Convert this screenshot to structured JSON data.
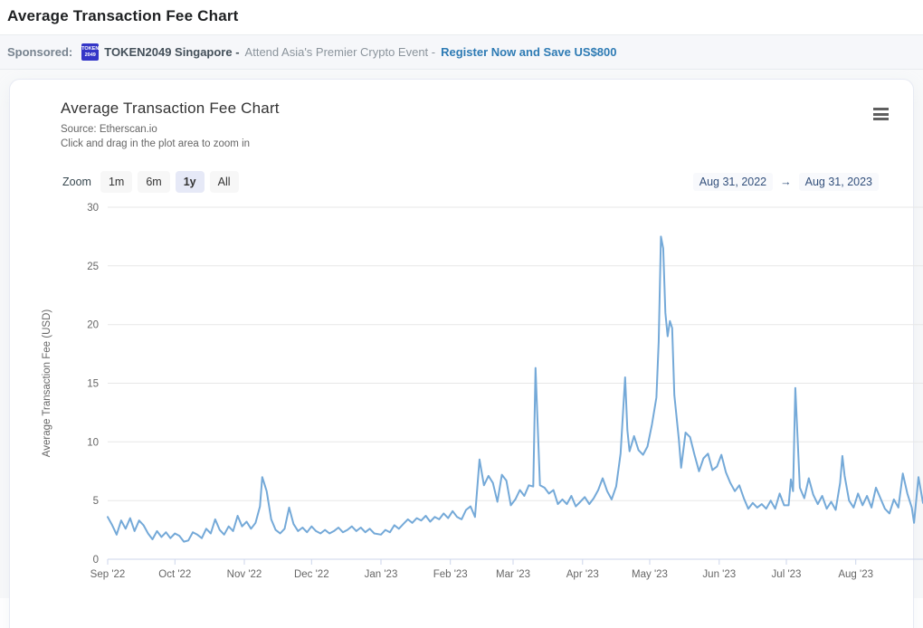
{
  "page": {
    "title": "Average Transaction Fee Chart"
  },
  "sponsor": {
    "label": "Sponsored:",
    "badge_line1": "TOKEN",
    "badge_line2": "2049",
    "name": "TOKEN2049 Singapore -",
    "text": "Attend Asia's Premier Crypto Event -",
    "link": "Register Now and Save US$800"
  },
  "card": {
    "title": "Average Transaction Fee Chart",
    "source": "Source: Etherscan.io",
    "hint": "Click and drag in the plot area to zoom in"
  },
  "range_selector": {
    "zoom_label": "Zoom",
    "buttons": [
      {
        "label": "1m",
        "selected": false
      },
      {
        "label": "6m",
        "selected": false
      },
      {
        "label": "1y",
        "selected": true
      },
      {
        "label": "All",
        "selected": false
      }
    ],
    "from": "Aug 31, 2022",
    "arrow": "→",
    "to": "Aug 31, 2023"
  },
  "chart_data": {
    "type": "line",
    "title": "Average Transaction Fee Chart",
    "ylabel": "Average Transaction Fee (USD)",
    "ylim": [
      0,
      30
    ],
    "yticks": [
      0,
      5,
      10,
      15,
      20,
      25,
      30
    ],
    "grid": "horizontal only",
    "legend": "none",
    "line_color": "#74a9d8",
    "grid_color": "#e7e7e7",
    "axis_line_color": "#ccd6eb",
    "x_unit": "days since Sep 1, 2022",
    "x_range_days": [
      0,
      364
    ],
    "xtick_labels": [
      "Sep '22",
      "Oct '22",
      "Nov '22",
      "Dec '22",
      "Jan '23",
      "Feb '23",
      "Mar '23",
      "Apr '23",
      "May '23",
      "Jun '23",
      "Jul '23",
      "Aug '23"
    ],
    "xtick_days": [
      0,
      30,
      61,
      91,
      122,
      153,
      181,
      212,
      242,
      273,
      303,
      334
    ],
    "series": [
      {
        "name": "Average Transaction Fee (USD)",
        "points": [
          [
            0,
            3.6
          ],
          [
            2,
            2.9
          ],
          [
            4,
            2.1
          ],
          [
            6,
            3.3
          ],
          [
            8,
            2.6
          ],
          [
            10,
            3.5
          ],
          [
            12,
            2.4
          ],
          [
            14,
            3.3
          ],
          [
            16,
            2.9
          ],
          [
            18,
            2.2
          ],
          [
            20,
            1.7
          ],
          [
            22,
            2.4
          ],
          [
            24,
            1.9
          ],
          [
            26,
            2.3
          ],
          [
            28,
            1.8
          ],
          [
            30,
            2.2
          ],
          [
            32,
            2.0
          ],
          [
            34,
            1.5
          ],
          [
            36,
            1.6
          ],
          [
            38,
            2.3
          ],
          [
            40,
            2.1
          ],
          [
            42,
            1.8
          ],
          [
            44,
            2.6
          ],
          [
            46,
            2.2
          ],
          [
            48,
            3.4
          ],
          [
            50,
            2.5
          ],
          [
            52,
            2.1
          ],
          [
            54,
            2.8
          ],
          [
            56,
            2.4
          ],
          [
            58,
            3.7
          ],
          [
            60,
            2.8
          ],
          [
            62,
            3.2
          ],
          [
            64,
            2.6
          ],
          [
            66,
            3.1
          ],
          [
            68,
            4.5
          ],
          [
            69,
            7.0
          ],
          [
            71,
            5.8
          ],
          [
            73,
            3.4
          ],
          [
            75,
            2.5
          ],
          [
            77,
            2.2
          ],
          [
            79,
            2.6
          ],
          [
            81,
            4.4
          ],
          [
            83,
            3.0
          ],
          [
            85,
            2.4
          ],
          [
            87,
            2.7
          ],
          [
            89,
            2.3
          ],
          [
            91,
            2.8
          ],
          [
            93,
            2.4
          ],
          [
            95,
            2.2
          ],
          [
            97,
            2.5
          ],
          [
            99,
            2.2
          ],
          [
            101,
            2.4
          ],
          [
            103,
            2.7
          ],
          [
            105,
            2.3
          ],
          [
            107,
            2.5
          ],
          [
            109,
            2.8
          ],
          [
            111,
            2.4
          ],
          [
            113,
            2.7
          ],
          [
            115,
            2.3
          ],
          [
            117,
            2.6
          ],
          [
            119,
            2.2
          ],
          [
            122,
            2.1
          ],
          [
            124,
            2.5
          ],
          [
            126,
            2.3
          ],
          [
            128,
            2.9
          ],
          [
            130,
            2.6
          ],
          [
            132,
            3.0
          ],
          [
            134,
            3.4
          ],
          [
            136,
            3.1
          ],
          [
            138,
            3.5
          ],
          [
            140,
            3.3
          ],
          [
            142,
            3.7
          ],
          [
            144,
            3.2
          ],
          [
            146,
            3.6
          ],
          [
            148,
            3.4
          ],
          [
            150,
            3.9
          ],
          [
            152,
            3.5
          ],
          [
            154,
            4.1
          ],
          [
            156,
            3.6
          ],
          [
            158,
            3.4
          ],
          [
            160,
            4.2
          ],
          [
            162,
            4.5
          ],
          [
            164,
            3.6
          ],
          [
            166,
            8.5
          ],
          [
            168,
            6.3
          ],
          [
            170,
            7.1
          ],
          [
            172,
            6.5
          ],
          [
            174,
            4.9
          ],
          [
            176,
            7.2
          ],
          [
            178,
            6.7
          ],
          [
            180,
            4.6
          ],
          [
            182,
            5.1
          ],
          [
            184,
            5.9
          ],
          [
            186,
            5.4
          ],
          [
            188,
            6.3
          ],
          [
            190,
            6.2
          ],
          [
            191,
            16.3
          ],
          [
            193,
            6.3
          ],
          [
            195,
            6.1
          ],
          [
            197,
            5.6
          ],
          [
            199,
            5.9
          ],
          [
            201,
            4.7
          ],
          [
            203,
            5.1
          ],
          [
            205,
            4.7
          ],
          [
            207,
            5.4
          ],
          [
            209,
            4.5
          ],
          [
            211,
            4.9
          ],
          [
            213,
            5.3
          ],
          [
            215,
            4.7
          ],
          [
            217,
            5.2
          ],
          [
            219,
            5.9
          ],
          [
            221,
            6.9
          ],
          [
            223,
            5.8
          ],
          [
            225,
            5.1
          ],
          [
            227,
            6.2
          ],
          [
            229,
            9.0
          ],
          [
            231,
            15.5
          ],
          [
            232,
            11.0
          ],
          [
            233,
            9.2
          ],
          [
            235,
            10.5
          ],
          [
            237,
            9.3
          ],
          [
            239,
            8.9
          ],
          [
            241,
            9.6
          ],
          [
            243,
            11.5
          ],
          [
            245,
            13.8
          ],
          [
            246,
            18.5
          ],
          [
            247,
            27.5
          ],
          [
            248,
            26.5
          ],
          [
            249,
            21.0
          ],
          [
            250,
            19.0
          ],
          [
            251,
            20.3
          ],
          [
            252,
            19.7
          ],
          [
            253,
            14.0
          ],
          [
            255,
            10.2
          ],
          [
            256,
            7.8
          ],
          [
            258,
            10.8
          ],
          [
            260,
            10.4
          ],
          [
            262,
            8.9
          ],
          [
            264,
            7.5
          ],
          [
            266,
            8.6
          ],
          [
            268,
            9.0
          ],
          [
            270,
            7.6
          ],
          [
            272,
            7.9
          ],
          [
            274,
            8.9
          ],
          [
            276,
            7.4
          ],
          [
            278,
            6.5
          ],
          [
            280,
            5.8
          ],
          [
            282,
            6.3
          ],
          [
            284,
            5.2
          ],
          [
            286,
            4.3
          ],
          [
            288,
            4.8
          ],
          [
            290,
            4.4
          ],
          [
            292,
            4.7
          ],
          [
            294,
            4.3
          ],
          [
            296,
            5.0
          ],
          [
            298,
            4.3
          ],
          [
            300,
            5.6
          ],
          [
            302,
            4.6
          ],
          [
            304,
            4.6
          ],
          [
            305,
            6.8
          ],
          [
            306,
            5.8
          ],
          [
            307,
            14.6
          ],
          [
            309,
            6.1
          ],
          [
            311,
            5.2
          ],
          [
            313,
            6.9
          ],
          [
            315,
            5.5
          ],
          [
            317,
            4.7
          ],
          [
            319,
            5.4
          ],
          [
            321,
            4.3
          ],
          [
            323,
            4.9
          ],
          [
            325,
            4.2
          ],
          [
            327,
            6.5
          ],
          [
            328,
            8.8
          ],
          [
            329,
            7.1
          ],
          [
            331,
            5.0
          ],
          [
            333,
            4.4
          ],
          [
            335,
            5.6
          ],
          [
            337,
            4.6
          ],
          [
            339,
            5.4
          ],
          [
            341,
            4.4
          ],
          [
            343,
            6.1
          ],
          [
            345,
            5.2
          ],
          [
            347,
            4.3
          ],
          [
            349,
            3.9
          ],
          [
            351,
            5.1
          ],
          [
            353,
            4.4
          ],
          [
            355,
            7.3
          ],
          [
            357,
            5.6
          ],
          [
            359,
            4.4
          ],
          [
            360,
            3.1
          ],
          [
            362,
            7.0
          ],
          [
            364,
            4.8
          ]
        ]
      }
    ]
  }
}
